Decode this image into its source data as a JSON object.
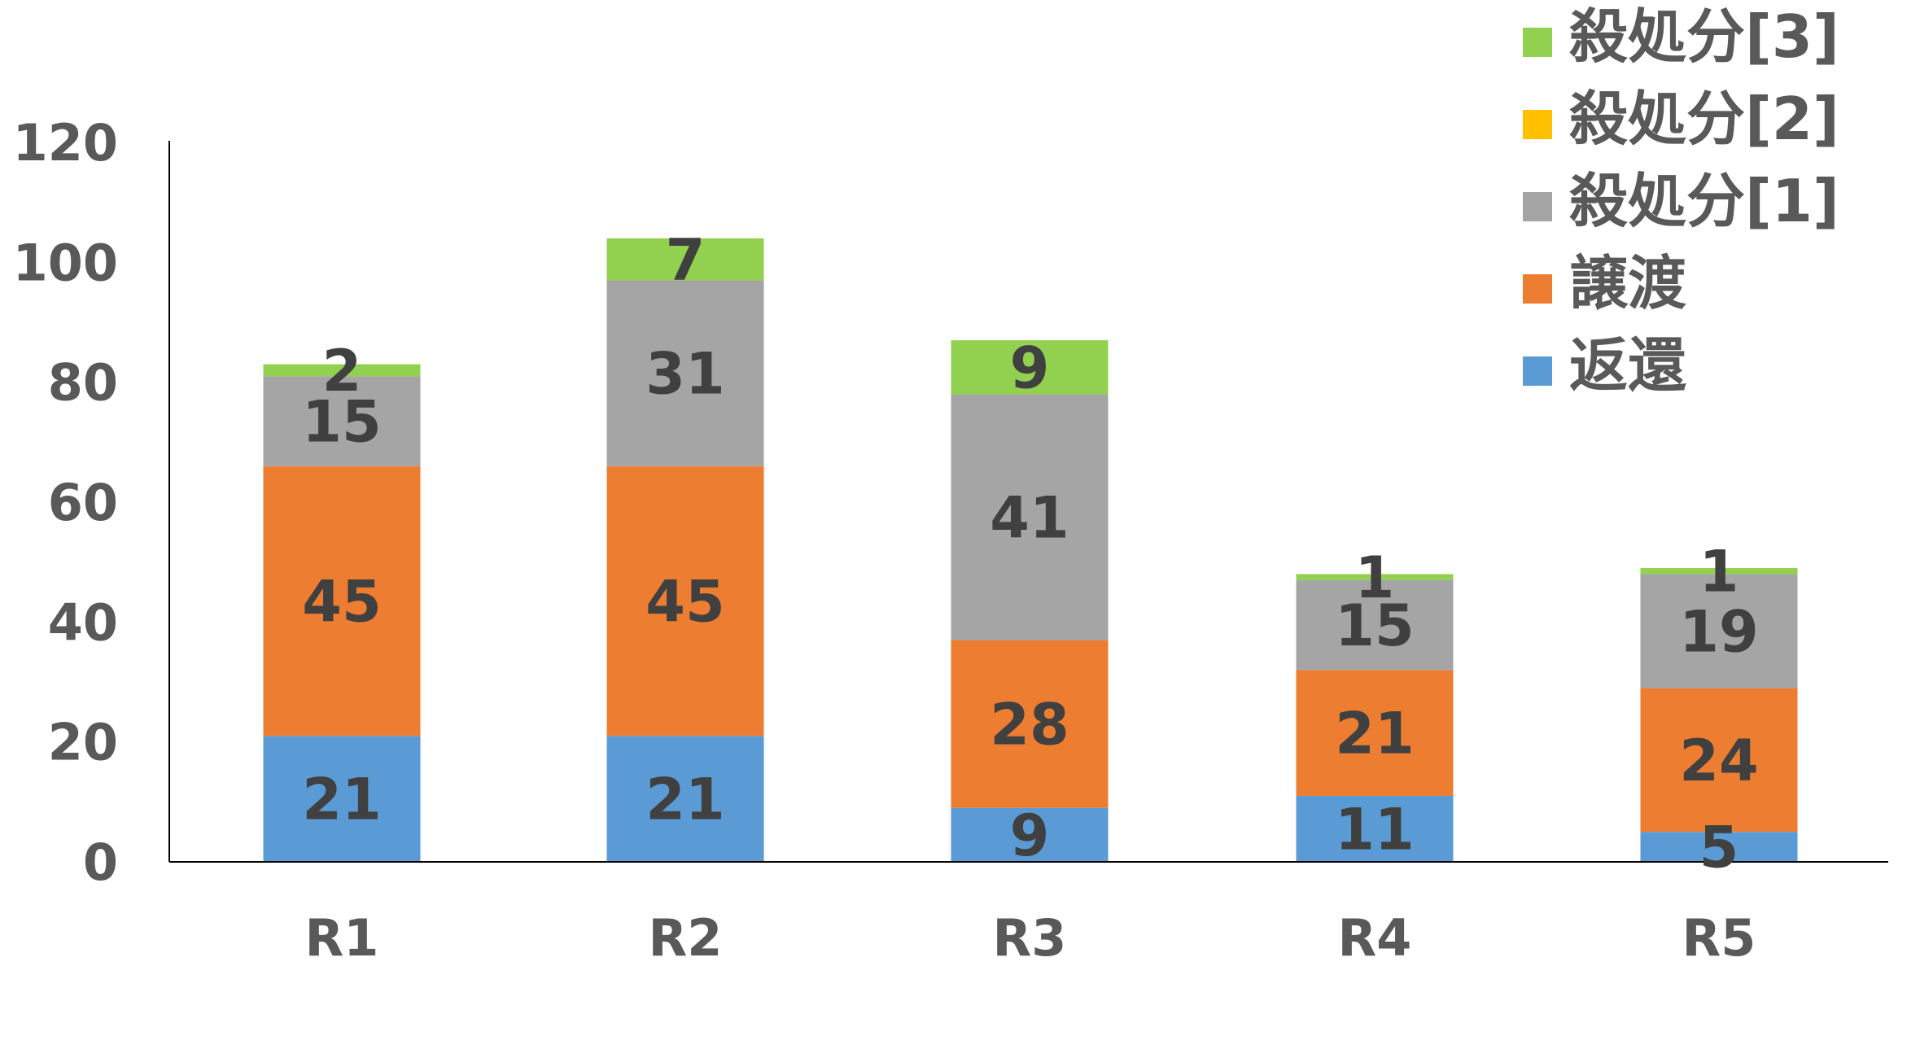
{
  "chart_data": {
    "type": "bar",
    "stacked": true,
    "title": "",
    "xlabel": "",
    "ylabel": "",
    "categories": [
      "R1",
      "R2",
      "R3",
      "R4",
      "R5"
    ],
    "ylim": [
      0,
      120
    ],
    "y_ticks": [
      0,
      20,
      40,
      60,
      80,
      100,
      120
    ],
    "y_tick_labels": [
      "0",
      "20",
      "40",
      "60",
      "80",
      "100",
      "120"
    ],
    "grid": false,
    "legend_position": "top-right",
    "series": [
      {
        "name": "返還",
        "color": "#5B9BD5",
        "values": [
          21,
          21,
          9,
          11,
          5
        ]
      },
      {
        "name": "譲渡",
        "color": "#ED7D31",
        "values": [
          45,
          45,
          28,
          21,
          24
        ]
      },
      {
        "name": "殺処分[1]",
        "color": "#A5A5A5",
        "values": [
          15,
          31,
          41,
          15,
          19
        ]
      },
      {
        "name": "殺処分[2]",
        "color": "#FFC000",
        "values": [
          0,
          0,
          0,
          0,
          0
        ]
      },
      {
        "name": "殺処分[3]",
        "color": "#92D050",
        "values": [
          2,
          7,
          9,
          1,
          1
        ]
      }
    ],
    "data_labels": [
      [
        "21",
        "21",
        "9",
        "11",
        "5"
      ],
      [
        "45",
        "45",
        "28",
        "21",
        "24"
      ],
      [
        "15",
        "31",
        "41",
        "15",
        "19"
      ],
      [
        "",
        "",
        "",
        "",
        ""
      ],
      [
        "2",
        "7",
        "9",
        "1",
        "1"
      ]
    ],
    "legend_order": [
      4,
      3,
      2,
      1,
      0
    ]
  }
}
